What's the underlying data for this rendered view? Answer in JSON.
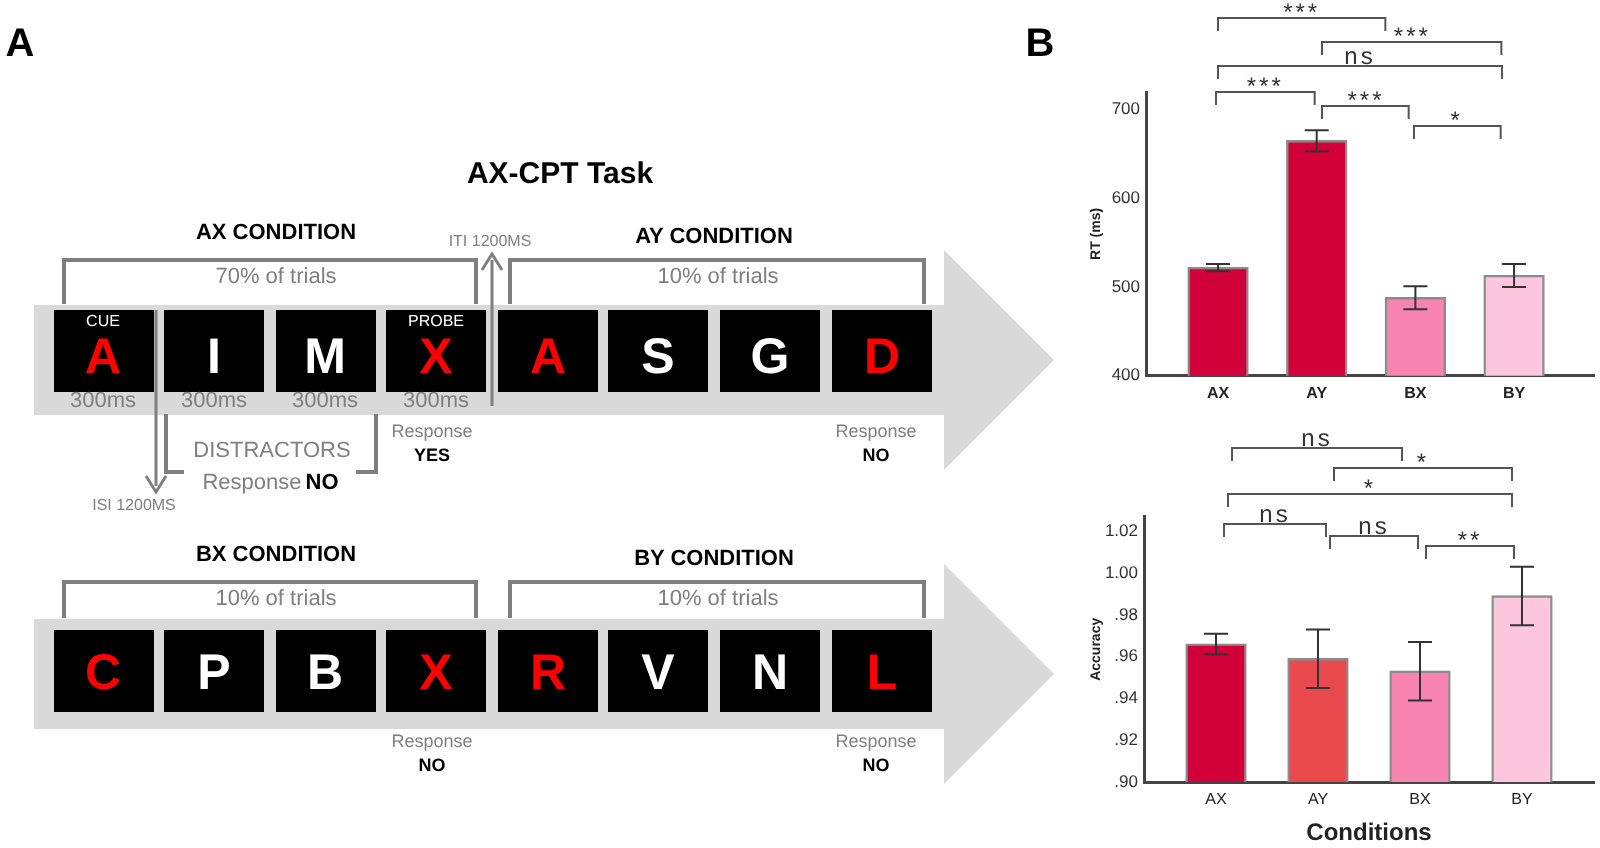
{
  "chart_data": [
    {
      "type": "other",
      "title": "AX-CPT Task",
      "annotations": [
        "A",
        "AX CONDITION",
        "70% of trials",
        "ITI 1200MS",
        "AY CONDITION",
        "10% of trials",
        "CUE",
        "PROBE",
        "A",
        "I",
        "M",
        "X",
        "A",
        "S",
        "G",
        "D",
        "300ms",
        "300ms",
        "300ms",
        "300ms",
        "ISI 1200MS",
        "DISTRACTORS",
        "Response",
        "NO",
        "Response",
        "YES",
        "Response",
        "NO",
        "BX CONDITION",
        "10% of trials",
        "BY CONDITION",
        "10% of trials",
        "C",
        "P",
        "B",
        "X",
        "R",
        "V",
        "N",
        "L",
        "Response",
        "NO",
        "Response",
        "NO"
      ]
    },
    {
      "type": "bar",
      "categories": [
        "AX",
        "AY",
        "BX",
        "BY"
      ],
      "values": [
        522,
        665,
        488,
        513
      ],
      "errors": [
        4,
        12,
        13,
        13
      ],
      "colors": [
        "#d20038",
        "#d20038",
        "#f884b0",
        "#fcc6dd"
      ],
      "ylabel": "RT (ms)",
      "ylim": [
        400,
        720
      ],
      "yticks": [
        400,
        500,
        600,
        700
      ],
      "annotations": [
        "B",
        "***",
        "***",
        "ns",
        "***",
        "***",
        "*"
      ]
    },
    {
      "type": "bar",
      "categories": [
        "AX",
        "AY",
        "BX",
        "BY"
      ],
      "values": [
        0.966,
        0.959,
        0.953,
        0.989
      ],
      "errors": [
        0.005,
        0.014,
        0.014,
        0.014
      ],
      "colors": [
        "#d20038",
        "#e84a4e",
        "#f884b0",
        "#fcc6dd"
      ],
      "xlabel": "Conditions",
      "ylabel": "Accuracy",
      "ylim": [
        0.9,
        1.027
      ],
      "yticks": [
        {
          "value": 0.9,
          "label": ".90"
        },
        {
          "value": 0.92,
          "label": ".92"
        },
        {
          "value": 0.94,
          "label": ".94"
        },
        {
          "value": 0.96,
          "label": ".96"
        },
        {
          "value": 0.98,
          "label": ".98"
        },
        {
          "value": 1.0,
          "label": "1.00"
        },
        {
          "value": 1.02,
          "label": "1.02"
        }
      ],
      "annotations": [
        "ns",
        "*",
        "*",
        "ns",
        "ns",
        "**"
      ]
    }
  ]
}
